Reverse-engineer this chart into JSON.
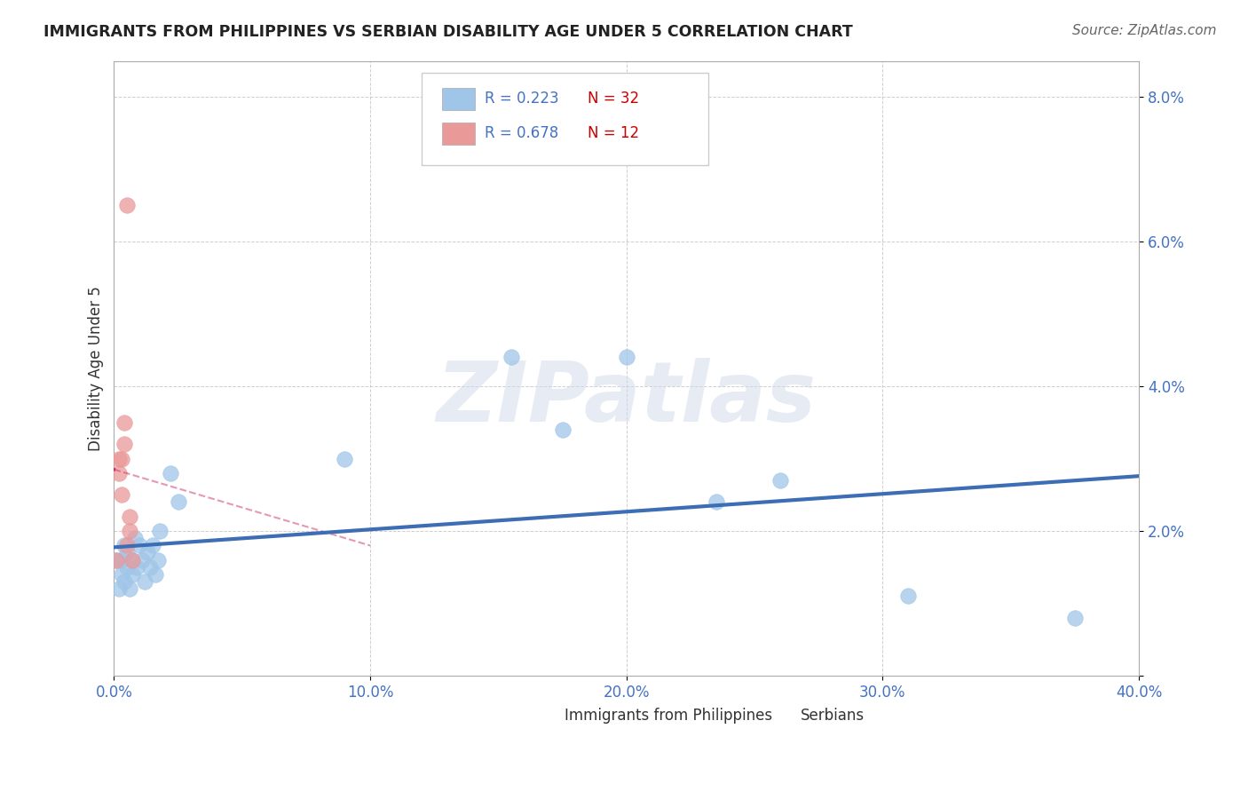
{
  "title": "IMMIGRANTS FROM PHILIPPINES VS SERBIAN DISABILITY AGE UNDER 5 CORRELATION CHART",
  "source": "Source: ZipAtlas.com",
  "ylabel": "Disability Age Under 5",
  "xlim": [
    0.0,
    0.4
  ],
  "ylim": [
    0.0,
    0.085
  ],
  "xticks": [
    0.0,
    0.1,
    0.2,
    0.3,
    0.4
  ],
  "xtick_labels": [
    "0.0%",
    "10.0%",
    "20.0%",
    "30.0%",
    "40.0%"
  ],
  "yticks": [
    0.0,
    0.02,
    0.04,
    0.06,
    0.08
  ],
  "ytick_labels": [
    "",
    "2.0%",
    "4.0%",
    "6.0%",
    "8.0%"
  ],
  "legend_r1": "R = 0.223",
  "legend_n1": "N = 32",
  "legend_r2": "R = 0.678",
  "legend_n2": "N = 12",
  "blue_color": "#9fc5e8",
  "pink_color": "#ea9999",
  "trend_blue": "#3d6eb5",
  "trend_pink": "#cc3366",
  "philippines_x": [
    0.001,
    0.002,
    0.003,
    0.003,
    0.004,
    0.004,
    0.005,
    0.005,
    0.006,
    0.007,
    0.007,
    0.008,
    0.009,
    0.01,
    0.011,
    0.012,
    0.013,
    0.014,
    0.015,
    0.016,
    0.017,
    0.018,
    0.022,
    0.025,
    0.09,
    0.155,
    0.175,
    0.2,
    0.235,
    0.26,
    0.31,
    0.375
  ],
  "philippines_y": [
    0.016,
    0.012,
    0.016,
    0.014,
    0.018,
    0.013,
    0.017,
    0.015,
    0.012,
    0.014,
    0.016,
    0.019,
    0.015,
    0.018,
    0.016,
    0.013,
    0.017,
    0.015,
    0.018,
    0.014,
    0.016,
    0.02,
    0.028,
    0.024,
    0.03,
    0.044,
    0.034,
    0.044,
    0.024,
    0.027,
    0.011,
    0.008
  ],
  "serbians_x": [
    0.001,
    0.002,
    0.002,
    0.003,
    0.003,
    0.004,
    0.004,
    0.005,
    0.005,
    0.006,
    0.006,
    0.007
  ],
  "serbians_y": [
    0.016,
    0.03,
    0.028,
    0.03,
    0.025,
    0.035,
    0.032,
    0.018,
    0.065,
    0.02,
    0.022,
    0.016
  ],
  "watermark": "ZIPatlas",
  "background_color": "#ffffff",
  "grid_color": "#bbbbbb"
}
